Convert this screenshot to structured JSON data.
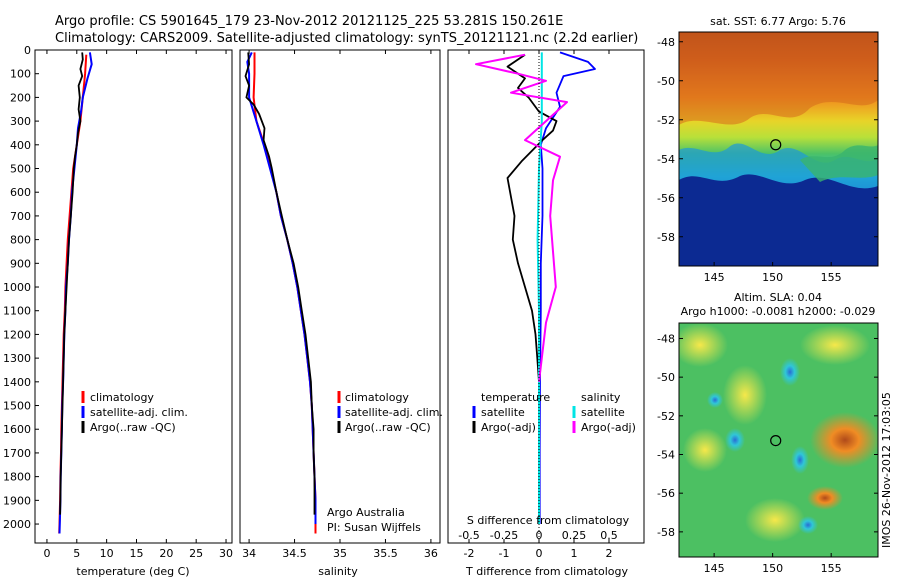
{
  "header": {
    "line1": "Argo profile: CS 5901645_179 23-Nov-2012 20121125_225 53.281S 150.261E",
    "line2": "Climatology: CARS2009. Satellite-adjusted climatology: synTS_20121121.nc (2.2d earlier)"
  },
  "colors": {
    "climatology": "#ff0000",
    "satellite": "#0000ff",
    "argo": "#000000",
    "salinity_satellite": "#00e5e5",
    "salinity_argo": "#ff00ff"
  },
  "chart_data": [
    {
      "type": "line",
      "panel": "temperature",
      "xlabel": "temperature (deg C)",
      "xlim": [
        -2,
        31
      ],
      "xticks": [
        "0",
        "5",
        "10",
        "15",
        "20",
        "25",
        "30"
      ],
      "ylim": [
        2080,
        0
      ],
      "yticks": [
        "0",
        "100",
        "200",
        "300",
        "400",
        "500",
        "600",
        "700",
        "800",
        "900",
        "1000",
        "1100",
        "1200",
        "1300",
        "1400",
        "1500",
        "1600",
        "1700",
        "1800",
        "1900",
        "2000"
      ],
      "legend": [
        "climatology",
        "satellite-adj. clim.",
        "Argo(..raw -QC)"
      ],
      "series": [
        {
          "name": "climatology",
          "points": [
            [
              6.6,
              20
            ],
            [
              6.4,
              100
            ],
            [
              6.0,
              200
            ],
            [
              5.6,
              300
            ],
            [
              5.0,
              400
            ],
            [
              4.4,
              500
            ],
            [
              4.1,
              600
            ],
            [
              3.8,
              700
            ],
            [
              3.5,
              800
            ],
            [
              3.3,
              900
            ],
            [
              3.1,
              1000
            ],
            [
              3.0,
              1100
            ],
            [
              2.8,
              1200
            ],
            [
              2.7,
              1300
            ],
            [
              2.6,
              1400
            ],
            [
              2.5,
              1500
            ],
            [
              2.4,
              1600
            ],
            [
              2.35,
              1700
            ],
            [
              2.25,
              1800
            ],
            [
              2.2,
              1900
            ],
            [
              2.1,
              2000
            ],
            [
              2.05,
              2040
            ]
          ]
        },
        {
          "name": "satellite-adj. clim.",
          "points": [
            [
              7.2,
              10
            ],
            [
              7.5,
              60
            ],
            [
              6.8,
              120
            ],
            [
              6.0,
              200
            ],
            [
              5.7,
              260
            ],
            [
              5.2,
              330
            ],
            [
              5.0,
              400
            ],
            [
              4.6,
              500
            ],
            [
              4.2,
              600
            ],
            [
              4.0,
              700
            ],
            [
              3.7,
              800
            ],
            [
              3.5,
              900
            ],
            [
              3.2,
              1000
            ],
            [
              3.1,
              1100
            ],
            [
              2.9,
              1200
            ],
            [
              2.8,
              1300
            ],
            [
              2.7,
              1400
            ],
            [
              2.55,
              1500
            ],
            [
              2.5,
              1600
            ],
            [
              2.4,
              1700
            ],
            [
              2.3,
              1800
            ],
            [
              2.25,
              1900
            ],
            [
              2.15,
              2000
            ],
            [
              2.1,
              2040
            ]
          ]
        },
        {
          "name": "Argo(..raw -QC)",
          "points": [
            [
              5.9,
              10
            ],
            [
              6.0,
              40
            ],
            [
              5.6,
              80
            ],
            [
              5.9,
              110
            ],
            [
              5.3,
              150
            ],
            [
              5.5,
              200
            ],
            [
              5.3,
              250
            ],
            [
              5.6,
              300
            ],
            [
              5.2,
              350
            ],
            [
              5.0,
              400
            ],
            [
              4.7,
              450
            ],
            [
              4.5,
              500
            ],
            [
              4.3,
              600
            ],
            [
              4.0,
              700
            ],
            [
              3.7,
              800
            ],
            [
              3.5,
              900
            ],
            [
              3.3,
              1000
            ],
            [
              3.1,
              1100
            ],
            [
              2.9,
              1200
            ],
            [
              2.8,
              1300
            ],
            [
              2.7,
              1400
            ],
            [
              2.6,
              1500
            ],
            [
              2.5,
              1600
            ],
            [
              2.4,
              1700
            ],
            [
              2.3,
              1800
            ],
            [
              2.25,
              1900
            ],
            [
              2.2,
              1960
            ]
          ]
        }
      ]
    },
    {
      "type": "line",
      "panel": "salinity",
      "xlabel": "salinity",
      "xlim": [
        33.9,
        36.1
      ],
      "xticks": [
        "34",
        "34.5",
        "35",
        "35.5",
        "36"
      ],
      "ylim": [
        2080,
        0
      ],
      "legend": [
        "climatology",
        "satellite-adj. clim.",
        "Argo(..raw -QC)"
      ],
      "annotations": [
        "Argo Australia",
        "PI: Susan Wijffels"
      ],
      "series": [
        {
          "name": "climatology",
          "points": [
            [
              34.06,
              10
            ],
            [
              34.06,
              100
            ],
            [
              34.05,
              200
            ],
            [
              34.08,
              300
            ],
            [
              34.17,
              400
            ],
            [
              34.24,
              500
            ],
            [
              34.3,
              600
            ],
            [
              34.35,
              700
            ],
            [
              34.42,
              800
            ],
            [
              34.48,
              900
            ],
            [
              34.53,
              1000
            ],
            [
              34.57,
              1100
            ],
            [
              34.61,
              1200
            ],
            [
              34.64,
              1300
            ],
            [
              34.67,
              1400
            ],
            [
              34.69,
              1500
            ],
            [
              34.7,
              1600
            ],
            [
              34.71,
              1700
            ],
            [
              34.72,
              1800
            ],
            [
              34.73,
              1900
            ],
            [
              34.73,
              2000
            ],
            [
              34.73,
              2040
            ]
          ]
        },
        {
          "name": "satellite-adj. clim.",
          "points": [
            [
              34.03,
              10
            ],
            [
              33.98,
              50
            ],
            [
              34.0,
              100
            ],
            [
              34.0,
              200
            ],
            [
              34.08,
              300
            ],
            [
              34.16,
              400
            ],
            [
              34.23,
              500
            ],
            [
              34.3,
              600
            ],
            [
              34.35,
              700
            ],
            [
              34.42,
              800
            ],
            [
              34.48,
              900
            ],
            [
              34.53,
              1000
            ],
            [
              34.57,
              1100
            ],
            [
              34.61,
              1200
            ],
            [
              34.64,
              1300
            ],
            [
              34.67,
              1400
            ],
            [
              34.69,
              1500
            ],
            [
              34.7,
              1600
            ],
            [
              34.71,
              1700
            ],
            [
              34.72,
              1800
            ],
            [
              34.73,
              1900
            ],
            [
              34.73,
              2000
            ]
          ]
        },
        {
          "name": "Argo(..raw -QC)",
          "points": [
            [
              33.99,
              10
            ],
            [
              34.0,
              60
            ],
            [
              33.96,
              110
            ],
            [
              34.0,
              150
            ],
            [
              33.97,
              200
            ],
            [
              34.05,
              230
            ],
            [
              34.11,
              270
            ],
            [
              34.17,
              330
            ],
            [
              34.16,
              380
            ],
            [
              34.22,
              450
            ],
            [
              34.25,
              500
            ],
            [
              34.3,
              600
            ],
            [
              34.36,
              700
            ],
            [
              34.42,
              800
            ],
            [
              34.49,
              900
            ],
            [
              34.54,
              1000
            ],
            [
              34.58,
              1100
            ],
            [
              34.62,
              1200
            ],
            [
              34.65,
              1300
            ],
            [
              34.68,
              1400
            ],
            [
              34.69,
              1500
            ],
            [
              34.71,
              1600
            ],
            [
              34.71,
              1700
            ],
            [
              34.72,
              1800
            ],
            [
              34.72,
              1900
            ],
            [
              34.72,
              1960
            ]
          ]
        }
      ]
    },
    {
      "type": "line",
      "panel": "difference",
      "xlabel": "T difference from climatology",
      "xlabel_top": "S difference from climatology",
      "xlim": [
        -2.6,
        3.0
      ],
      "xticks": [
        "-2",
        "-1",
        "0",
        "1",
        "2"
      ],
      "xticks_s": [
        "-0.5",
        "-0.25",
        "0",
        "0.25",
        "0.5"
      ],
      "ylim": [
        2080,
        0
      ],
      "legend_temperature": {
        "title": "temperature",
        "items": [
          "satellite",
          "Argo(-adj)"
        ]
      },
      "legend_salinity": {
        "title": "salinity",
        "items": [
          "satellite",
          "Argo(-adj)"
        ]
      },
      "series": [
        {
          "name": "temperature satellite",
          "points": [
            [
              0.6,
              10
            ],
            [
              1.4,
              50
            ],
            [
              1.6,
              80
            ],
            [
              0.7,
              110
            ],
            [
              0.5,
              180
            ],
            [
              0.6,
              240
            ],
            [
              0.2,
              330
            ],
            [
              0.05,
              400
            ],
            [
              0.1,
              500
            ],
            [
              0.1,
              700
            ],
            [
              0.05,
              900
            ],
            [
              0.05,
              1100
            ],
            [
              0.03,
              1400
            ],
            [
              0.02,
              1700
            ],
            [
              0.02,
              2000
            ]
          ]
        },
        {
          "name": "temperature Argo(-adj)",
          "points": [
            [
              -0.4,
              20
            ],
            [
              -0.9,
              70
            ],
            [
              -0.4,
              120
            ],
            [
              -0.6,
              160
            ],
            [
              -0.3,
              200
            ],
            [
              0.0,
              260
            ],
            [
              0.5,
              300
            ],
            [
              0.4,
              340
            ],
            [
              0.1,
              380
            ],
            [
              -0.5,
              470
            ],
            [
              -0.9,
              540
            ],
            [
              -0.8,
              620
            ],
            [
              -0.7,
              700
            ],
            [
              -0.75,
              800
            ],
            [
              -0.6,
              900
            ],
            [
              -0.4,
              1000
            ],
            [
              -0.2,
              1100
            ],
            [
              -0.1,
              1200
            ],
            [
              -0.05,
              1300
            ],
            [
              0.0,
              1400
            ]
          ]
        },
        {
          "name": "salinity satellite",
          "points": [
            [
              0.02,
              10
            ],
            [
              0.02,
              300
            ],
            [
              0.0,
              500
            ],
            [
              -0.01,
              800
            ],
            [
              0.0,
              1100
            ],
            [
              0.0,
              1500
            ],
            [
              0.0,
              2000
            ]
          ]
        },
        {
          "name": "salinity Argo(-adj)",
          "points": [
            [
              -0.1,
              20
            ],
            [
              -0.45,
              60
            ],
            [
              -0.15,
              100
            ],
            [
              0.05,
              130
            ],
            [
              -0.2,
              180
            ],
            [
              0.2,
              220
            ],
            [
              0.05,
              300
            ],
            [
              -0.1,
              380
            ],
            [
              0.15,
              450
            ],
            [
              0.1,
              550
            ],
            [
              0.08,
              700
            ],
            [
              0.1,
              850
            ],
            [
              0.12,
              1000
            ],
            [
              0.05,
              1150
            ],
            [
              0.02,
              1300
            ],
            [
              0.0,
              1400
            ]
          ]
        }
      ]
    },
    {
      "type": "heatmap",
      "panel": "sst_map",
      "title": "sat. SST: 6.77 Argo: 5.76",
      "xlim": [
        142,
        159
      ],
      "ylim": [
        -59.5,
        -47.5
      ],
      "xticks": [
        "145",
        "150",
        "155"
      ],
      "yticks": [
        "-48",
        "-50",
        "-52",
        "-54",
        "-56",
        "-58"
      ],
      "marker": [
        150.261,
        -53.281
      ]
    },
    {
      "type": "heatmap",
      "panel": "sla_map",
      "title": "Altim. SLA: 0.04",
      "subtitle": "Argo h1000: -0.0081 h2000: -0.029",
      "xlim": [
        142,
        159
      ],
      "ylim": [
        -59.3,
        -47.2
      ],
      "xticks": [
        "145",
        "150",
        "155"
      ],
      "yticks": [
        "-48",
        "-50",
        "-52",
        "-54",
        "-56",
        "-58"
      ],
      "marker": [
        150.261,
        -53.281
      ]
    }
  ],
  "footer": {
    "stamp": "IMOS 26-Nov-2012 17:03:05"
  }
}
